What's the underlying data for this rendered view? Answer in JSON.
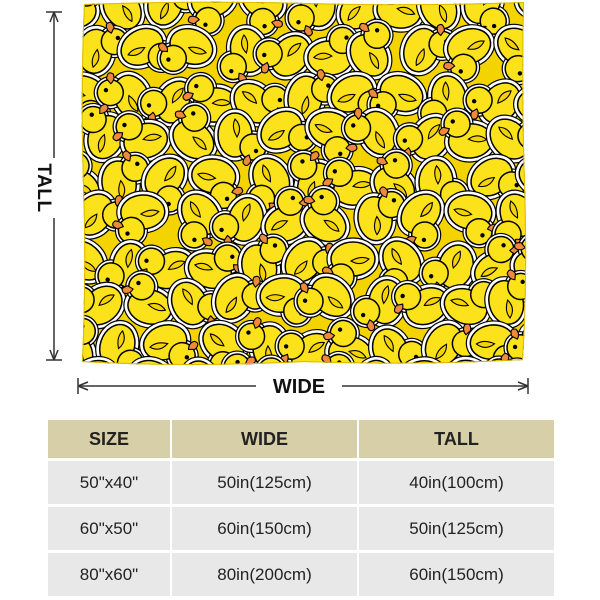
{
  "dimension_labels": {
    "tall": "TALL",
    "wide": "WIDE"
  },
  "blanket": {
    "pattern": "rubber duck pattern",
    "colors": {
      "background": "#f3d400",
      "duck_body": "#fce21a",
      "beak": "#ee8a3a",
      "outline": "#000000",
      "sticker_edge": "#ffffff"
    }
  },
  "size_table": {
    "headers": [
      "SIZE",
      "WIDE",
      "TALL"
    ],
    "rows": [
      [
        "50\"x40\"",
        "50in(125cm)",
        "40in(100cm)"
      ],
      [
        "60\"x50\"",
        "60in(150cm)",
        "50in(125cm)"
      ],
      [
        "80\"x60\"",
        "80in(200cm)",
        "60in(150cm)"
      ]
    ],
    "colors": {
      "header_bg": "#d7cfa8",
      "row_bg": "#e8e8e8"
    }
  }
}
